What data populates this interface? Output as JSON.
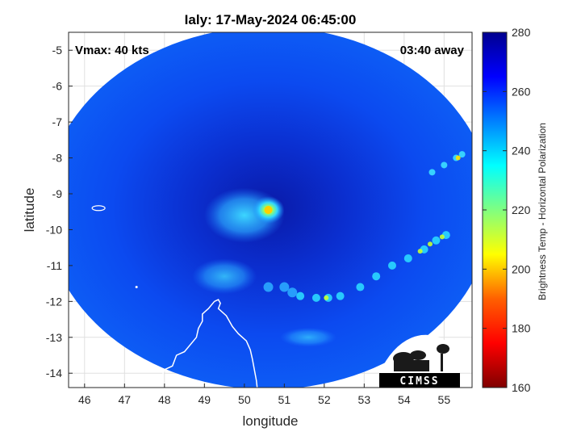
{
  "chart_data": {
    "type": "heatmap",
    "title": "Ialy: 17-May-2024 06:45:00",
    "xlabel": "longitude",
    "ylabel": "latitude",
    "xlim": [
      45.6,
      55.7
    ],
    "ylim": [
      -14.4,
      -4.5
    ],
    "xticks": [
      46,
      47,
      48,
      49,
      50,
      51,
      52,
      53,
      54,
      55
    ],
    "yticks": [
      -5,
      -6,
      -7,
      -8,
      -9,
      -10,
      -11,
      -12,
      -13,
      -14
    ],
    "grid": true,
    "annotations": {
      "top_left": "Vmax: 40 kts",
      "top_right": "03:40 away"
    },
    "colorbar": {
      "label": "Brightness Temp - Horizontal Polarization",
      "range": [
        160,
        280
      ],
      "ticks": [
        280,
        260,
        240,
        220,
        200,
        180,
        160
      ],
      "colormap": "jet",
      "colors": [
        "#7f0000",
        "#ff0000",
        "#ff8000",
        "#ffff00",
        "#80ff80",
        "#00ffff",
        "#0080ff",
        "#0000ff",
        "#00008f"
      ]
    },
    "swath": {
      "center_lon": 50.6,
      "center_lat": -9.4,
      "radius_lon": 5.6,
      "radius_lat": 5.05
    },
    "storm_center": {
      "lon": 50.6,
      "lat": -9.45,
      "temp": 205
    },
    "features": [
      {
        "name": "inner core",
        "lon": 50.0,
        "lat": -9.6,
        "temp": 235
      },
      {
        "name": "rainband east",
        "lon": 54.3,
        "lat": -10.8,
        "temp": 210
      },
      {
        "name": "rainband south",
        "lon": 51.9,
        "lat": -11.9,
        "temp": 215
      },
      {
        "name": "band northeast",
        "lon": 55.2,
        "lat": -8.0,
        "temp": 220
      }
    ]
  },
  "logo": {
    "text": "CIMSS"
  },
  "icons": {
    "logo": "cimss-logo-icon"
  }
}
